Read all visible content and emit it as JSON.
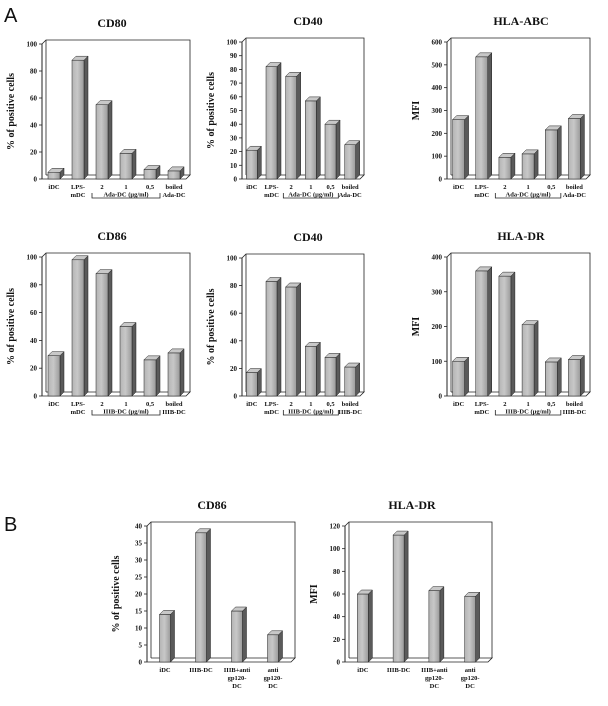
{
  "panels": {
    "A": "A",
    "B": "B"
  },
  "bar_colors": {
    "light": "#c8c8c8",
    "mid": "#9a9a9a",
    "dark": "#5a5a5a",
    "bstart": "#b4b4b4"
  },
  "chart_data": [
    {
      "type": "bar",
      "title": "CD80",
      "ylabel": "% of positive cells",
      "ylim": [
        0,
        100
      ],
      "ticks": [
        0,
        20,
        40,
        60,
        80,
        100
      ],
      "categories": [
        [
          "iDC"
        ],
        [
          "LPS-",
          "mDC"
        ],
        [
          "2"
        ],
        [
          "1"
        ],
        [
          "0,5"
        ],
        [
          "boiled",
          "Ada-DC"
        ]
      ],
      "values": [
        5,
        88,
        55,
        19,
        7,
        6
      ],
      "group_label": "Ada-DC (µg/ml)",
      "group_range": [
        2,
        5
      ]
    },
    {
      "type": "bar",
      "title": "CD40",
      "ylabel": "% of positive cells",
      "ylim": [
        0,
        100
      ],
      "ticks": [
        0,
        10,
        20,
        30,
        40,
        50,
        60,
        70,
        80,
        90,
        100
      ],
      "categories": [
        [
          "iDC"
        ],
        [
          "LPS-",
          "mDC"
        ],
        [
          "2"
        ],
        [
          "1"
        ],
        [
          "0,5"
        ],
        [
          "boiled",
          "Ada-DC"
        ]
      ],
      "values": [
        21,
        82,
        75,
        57,
        40,
        25
      ],
      "group_label": "Ada-DC (µg/ml)",
      "group_range": [
        2,
        5
      ]
    },
    {
      "type": "bar",
      "title": "HLA-ABC",
      "ylabel": "MFI",
      "ylim": [
        0,
        600
      ],
      "ticks": [
        0,
        100,
        200,
        300,
        400,
        500,
        600
      ],
      "categories": [
        [
          "iDC"
        ],
        [
          "LPS-",
          "mDC"
        ],
        [
          "2"
        ],
        [
          "1"
        ],
        [
          "0,5"
        ],
        [
          "boiled",
          "Ada-DC"
        ]
      ],
      "values": [
        260,
        535,
        95,
        110,
        215,
        265
      ],
      "group_label": "Ada-DC (µg/ml)",
      "group_range": [
        2,
        5
      ]
    },
    {
      "type": "bar",
      "title": "CD86",
      "ylabel": "% of positive cells",
      "ylim": [
        0,
        100
      ],
      "ticks": [
        0,
        20,
        40,
        60,
        80,
        100
      ],
      "categories": [
        [
          "iDC"
        ],
        [
          "LPS-",
          "mDC"
        ],
        [
          "2"
        ],
        [
          "1"
        ],
        [
          "0,5"
        ],
        [
          "boiled",
          "IIIB-DC"
        ]
      ],
      "values": [
        29,
        98,
        88,
        50,
        26,
        31
      ],
      "group_label": "IIIB-DC (µg/ml)",
      "group_range": [
        2,
        5
      ]
    },
    {
      "type": "bar",
      "title": "CD40",
      "ylabel": "% of positive cells",
      "ylim": [
        0,
        100
      ],
      "ticks": [
        0,
        20,
        40,
        60,
        80,
        100
      ],
      "categories": [
        [
          "iDC"
        ],
        [
          "LPS-",
          "mDC"
        ],
        [
          "2"
        ],
        [
          "1"
        ],
        [
          "0,5"
        ],
        [
          "boiled",
          "IIIB-DC"
        ]
      ],
      "values": [
        17,
        83,
        79,
        36,
        28,
        21
      ],
      "group_label": "IIIB-DC (µg/ml)",
      "group_range": [
        2,
        5
      ]
    },
    {
      "type": "bar",
      "title": "HLA-DR",
      "ylabel": "MFI",
      "ylim": [
        0,
        400
      ],
      "ticks": [
        0,
        100,
        200,
        300,
        400
      ],
      "categories": [
        [
          "iDC"
        ],
        [
          "LPS-",
          "mDC"
        ],
        [
          "2"
        ],
        [
          "1"
        ],
        [
          "0,5"
        ],
        [
          "boiled",
          "IIIB-DC"
        ]
      ],
      "values": [
        100,
        360,
        345,
        205,
        98,
        105
      ],
      "group_label": "IIIB-DC (µg/ml)",
      "group_range": [
        2,
        5
      ]
    },
    {
      "type": "bar",
      "title": "CD86",
      "ylabel": "% of positive cells",
      "ylim": [
        0,
        40
      ],
      "ticks": [
        0,
        5,
        10,
        15,
        20,
        25,
        30,
        35,
        40
      ],
      "categories": [
        [
          "iDC"
        ],
        [
          "IIIB-DC"
        ],
        [
          "IIIB+anti",
          "gp120-",
          "DC"
        ],
        [
          "anti",
          "gp120-",
          "DC"
        ]
      ],
      "values": [
        14,
        38,
        15,
        8
      ]
    },
    {
      "type": "bar",
      "title": "HLA-DR",
      "ylabel": "MFI",
      "ylim": [
        0,
        120
      ],
      "ticks": [
        0,
        20,
        40,
        60,
        80,
        100,
        120
      ],
      "categories": [
        [
          "iDC"
        ],
        [
          "IIIB-DC"
        ],
        [
          "IIIB+anti",
          "gp120-",
          "DC"
        ],
        [
          "anti",
          "gp120-",
          "DC"
        ]
      ],
      "values": [
        60,
        112,
        63,
        58
      ]
    }
  ]
}
